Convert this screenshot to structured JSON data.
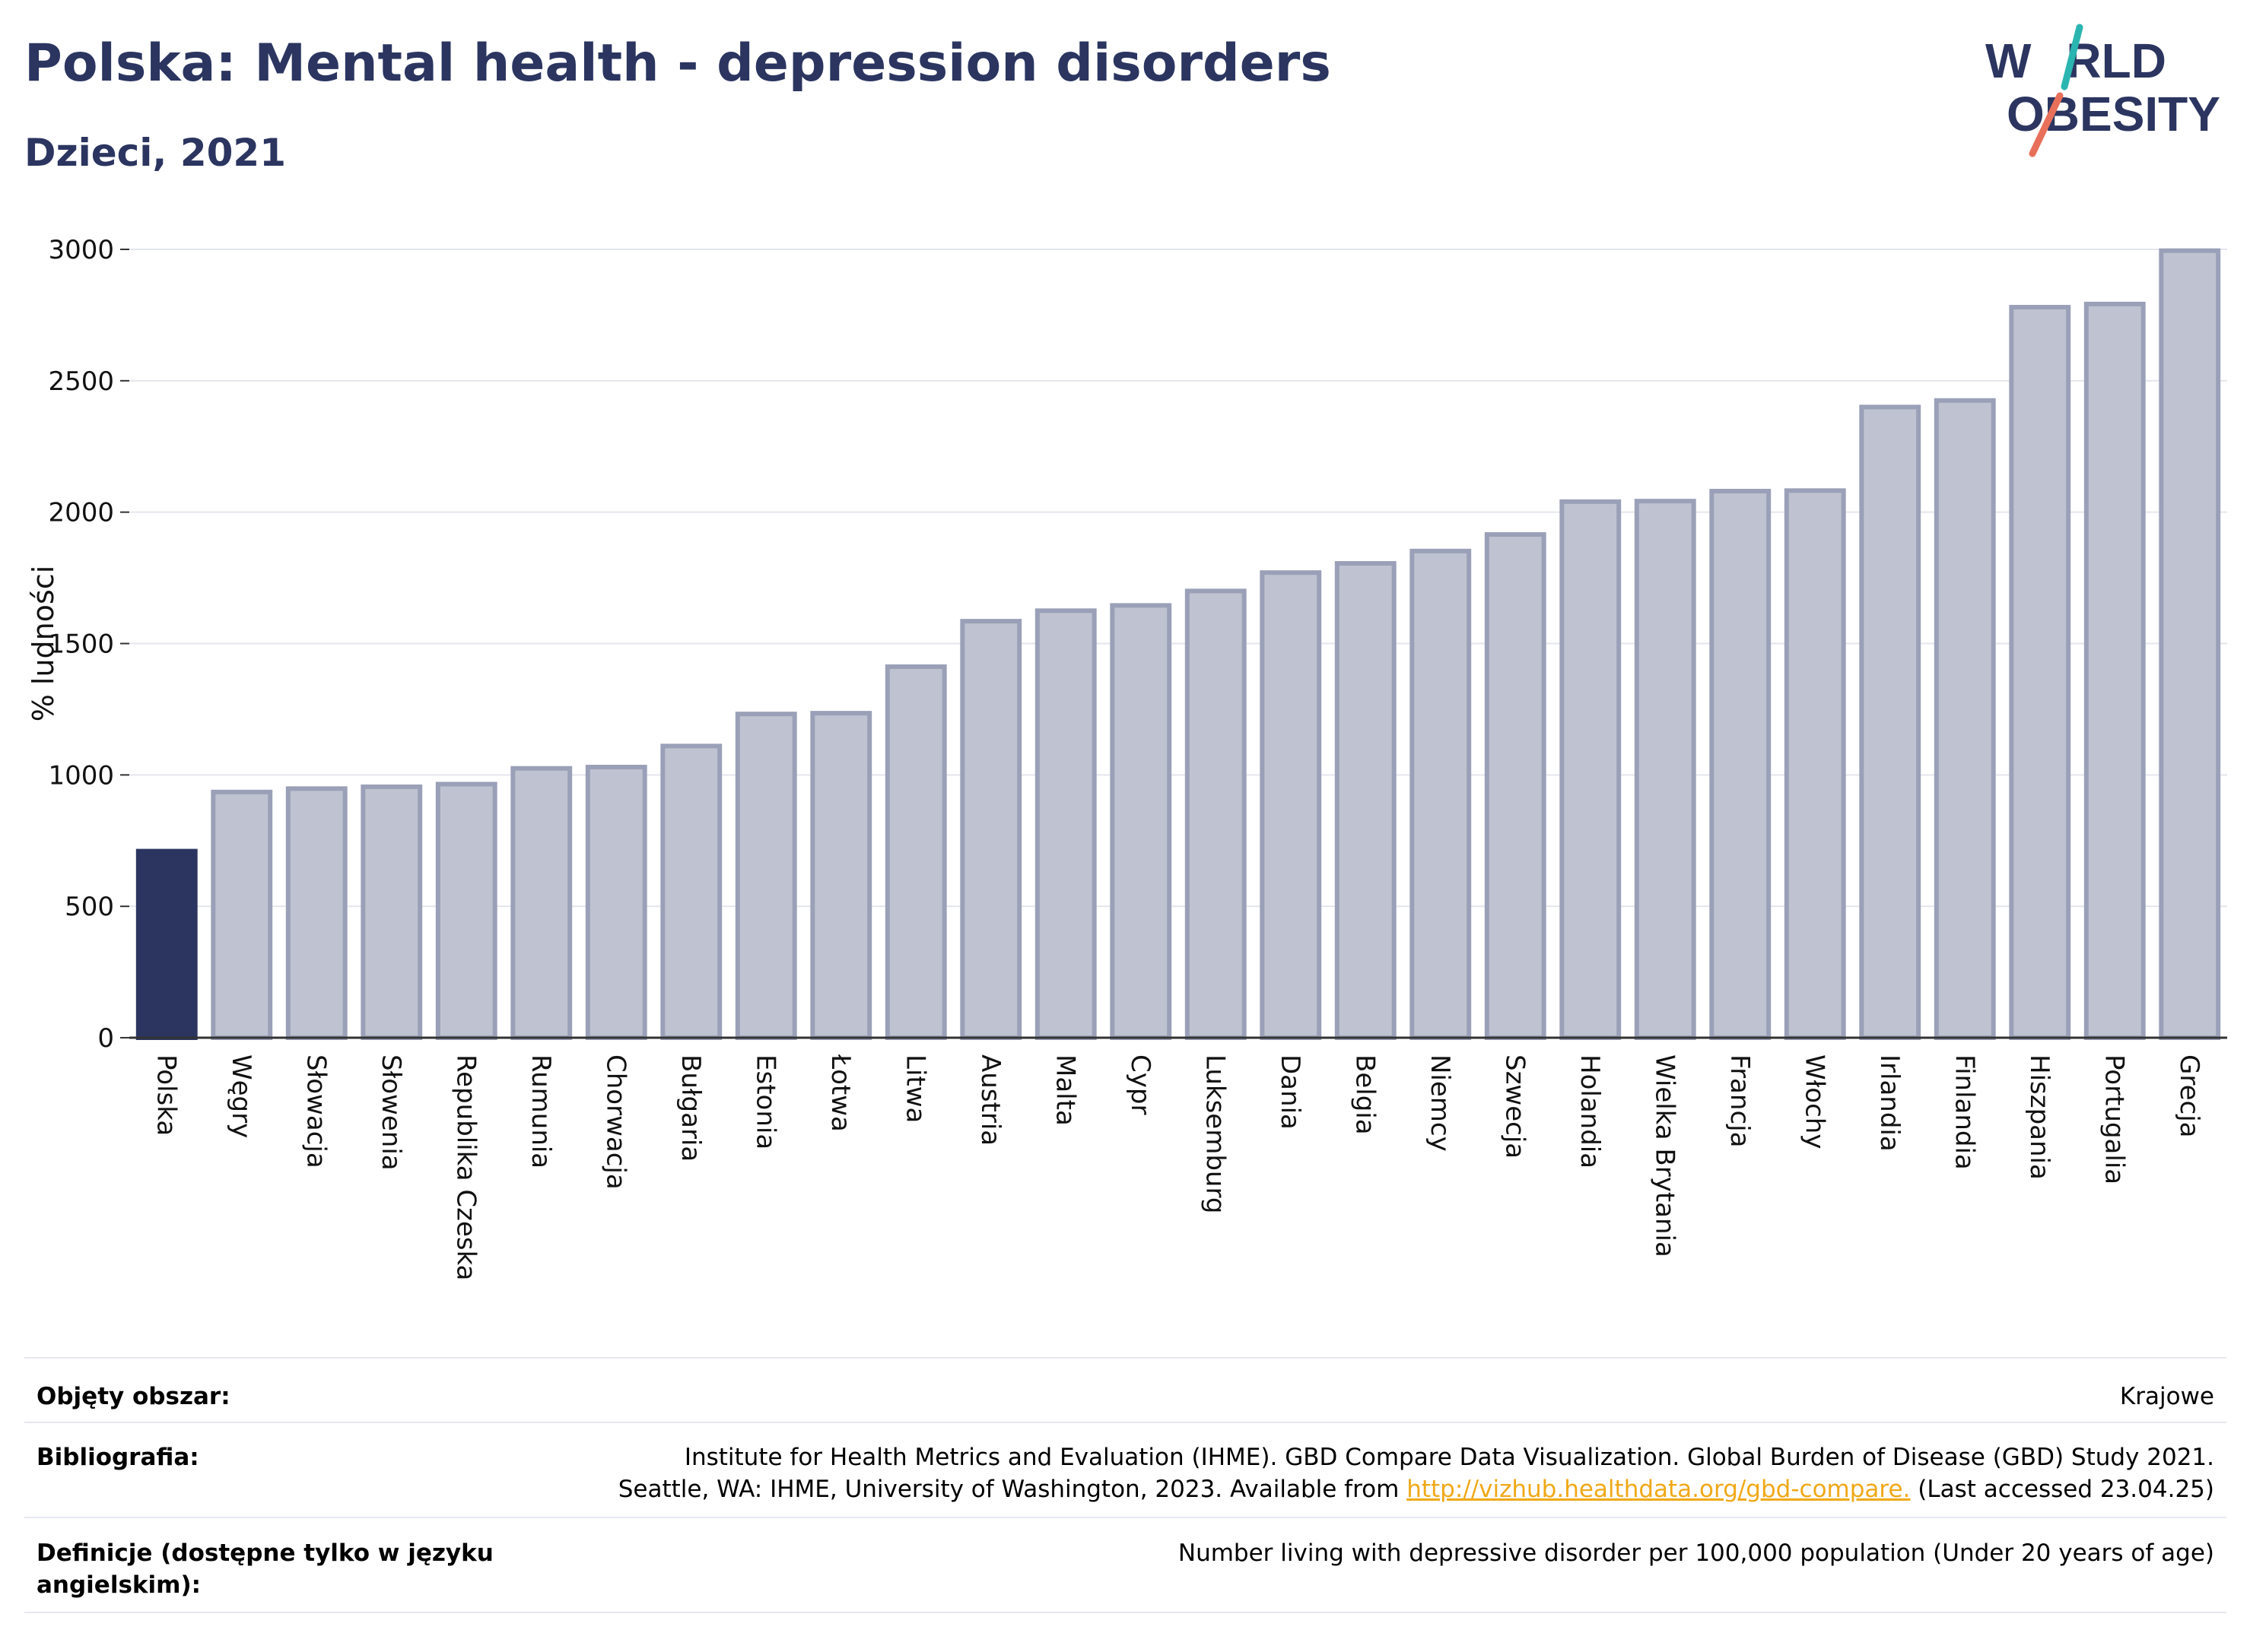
{
  "header": {
    "title": "Polska: Mental health - depression disorders",
    "subtitle": "Dzieci, 2021"
  },
  "logo": {
    "line1": "W",
    "line1b": "RLD",
    "line2": "OBESITY"
  },
  "chart_data": {
    "type": "bar",
    "title": "Polska: Mental health - depression disorders",
    "subtitle": "Dzieci, 2021",
    "ylabel": "% ludności",
    "xlabel": "",
    "ylim": [
      0,
      3000
    ],
    "yticks": [
      0,
      500,
      1000,
      1500,
      2000,
      2500,
      3000
    ],
    "grid": true,
    "highlight": "Polska",
    "colors": {
      "highlight": "#2b3560",
      "bar_fill": "#bfc3d1",
      "bar_border": "#9aa0b7"
    },
    "categories": [
      "Polska",
      "Węgry",
      "Słowacja",
      "Słowenia",
      "Republika Czeska",
      "Rumunia",
      "Chorwacja",
      "Bułgaria",
      "Estonia",
      "Łotwa",
      "Litwa",
      "Austria",
      "Malta",
      "Cypr",
      "Luksemburg",
      "Dania",
      "Belgia",
      "Niemcy",
      "Szwecja",
      "Holandia",
      "Wielka Brytania",
      "Francja",
      "Włochy",
      "Irlandia",
      "Finlandia",
      "Hiszpania",
      "Portugalia",
      "Grecja"
    ],
    "values": [
      710,
      935,
      948,
      955,
      965,
      1025,
      1030,
      1110,
      1232,
      1235,
      1412,
      1585,
      1625,
      1645,
      1700,
      1770,
      1805,
      1852,
      1915,
      2040,
      2042,
      2080,
      2082,
      2400,
      2425,
      2780,
      2792,
      2995
    ]
  },
  "meta": {
    "coverage_label": "Objęty obszar:",
    "coverage_value": "Krajowe",
    "bibliography_label": "Bibliografia:",
    "bibliography_line1": "Institute for Health Metrics and Evaluation (IHME). GBD Compare Data Visualization. Global Burden of Disease (GBD) Study 2021.",
    "bibliography_line2_pre": "Seattle, WA: IHME, University of Washington, 2023. Available from ",
    "bibliography_link": "http://vizhub.healthdata.org/gbd-compare.",
    "bibliography_line2_post": " (Last accessed 23.04.25)",
    "definitions_label": "Definicje (dostępne tylko w języku angielskim):",
    "definitions_value": "Number living with depressive disorder per 100,000 population (Under 20 years of age)"
  }
}
